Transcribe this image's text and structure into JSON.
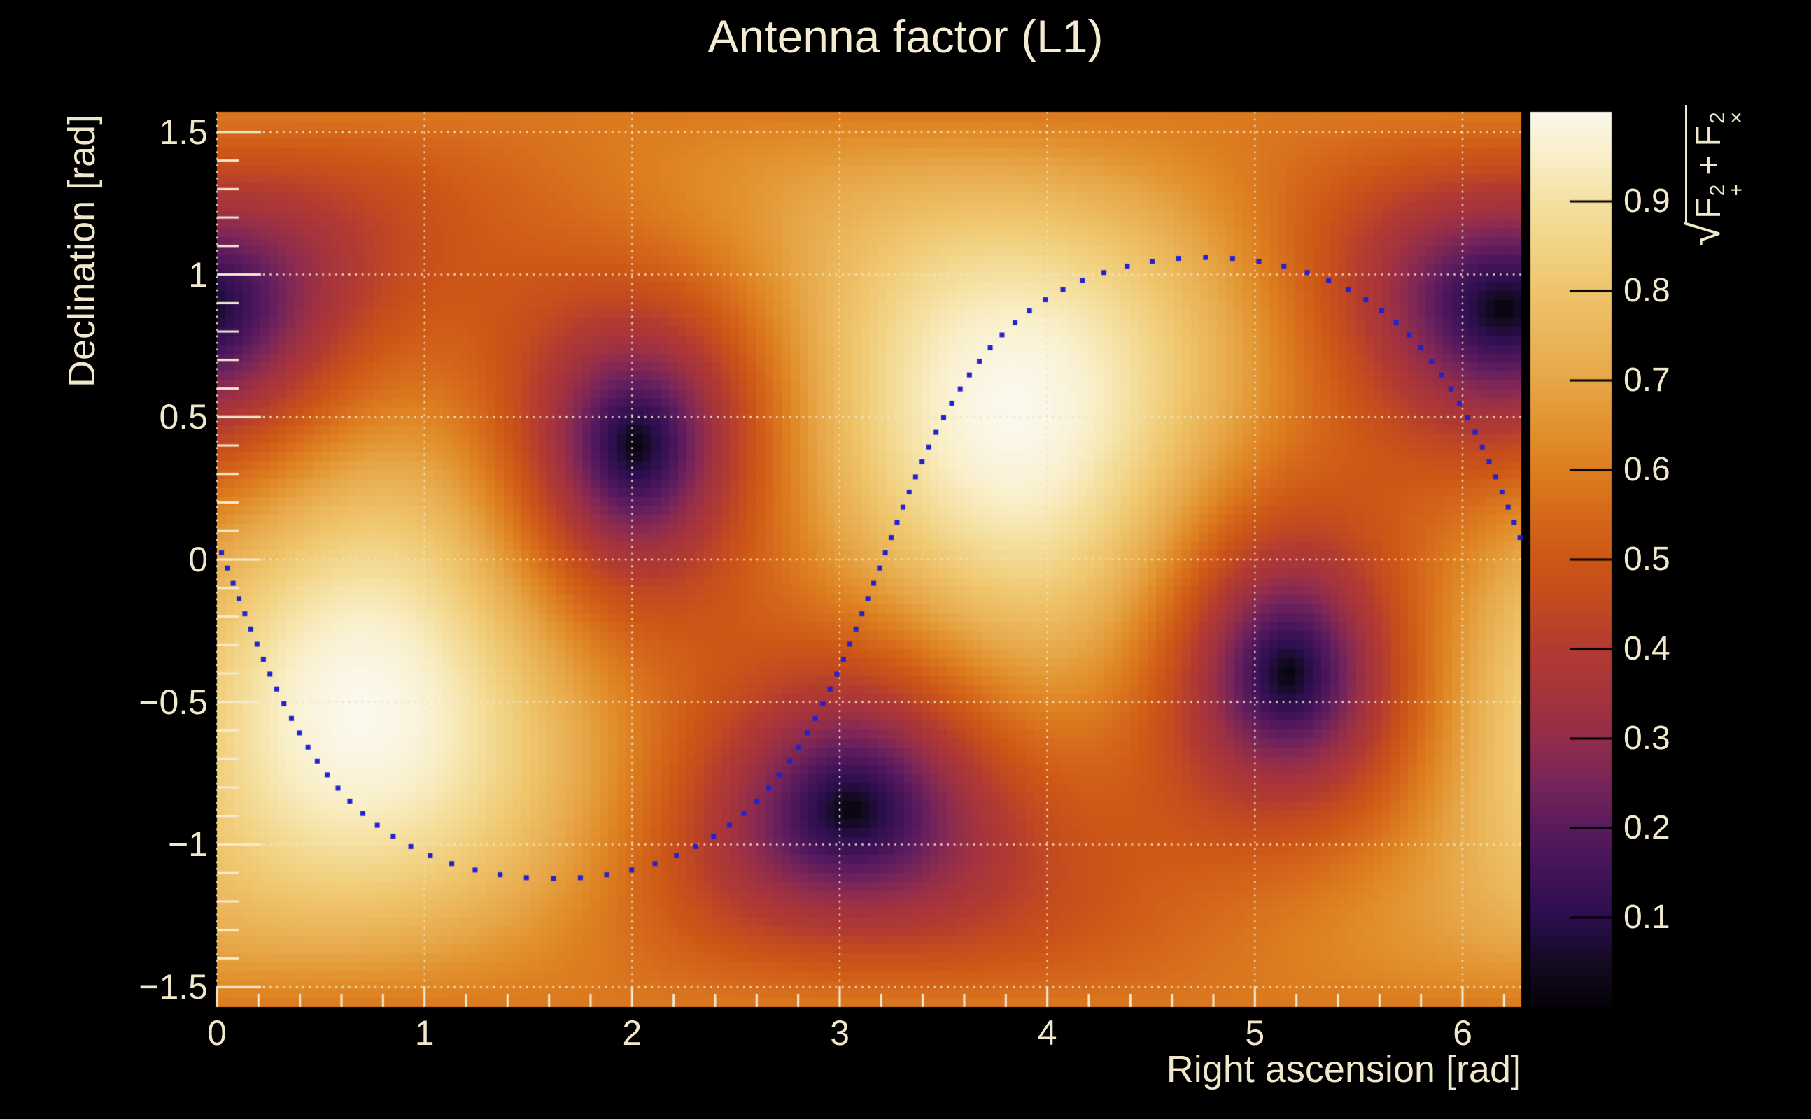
{
  "page": {
    "background": "#000000",
    "text_color": "#f1e8cc"
  },
  "chart_data": {
    "type": "heatmap",
    "title": "Antenna factor (L1)",
    "x_axis": {
      "title": "Right ascension [rad]",
      "range": [
        0,
        6.2832
      ],
      "minor_tick_step": 0.2,
      "ticks": [
        {
          "value": 0,
          "label": "0"
        },
        {
          "value": 1,
          "label": "1"
        },
        {
          "value": 2,
          "label": "2"
        },
        {
          "value": 3,
          "label": "3"
        },
        {
          "value": 4,
          "label": "4"
        },
        {
          "value": 5,
          "label": "5"
        },
        {
          "value": 6,
          "label": "6"
        }
      ]
    },
    "y_axis": {
      "title": "Declination [rad]",
      "range": [
        -1.5708,
        1.5708
      ],
      "minor_tick_step": 0.1,
      "ticks": [
        {
          "value": 1.5,
          "label": "1.5"
        },
        {
          "value": 1,
          "label": "1"
        },
        {
          "value": 0.5,
          "label": "0.5"
        },
        {
          "value": 0,
          "label": "0"
        },
        {
          "value": -0.5,
          "label": "−0.5"
        },
        {
          "value": -1,
          "label": "−1"
        },
        {
          "value": -1.5,
          "label": "−1.5"
        }
      ]
    },
    "colorbar": {
      "range": [
        0,
        1
      ],
      "ticks": [
        {
          "value": 0.9,
          "label": "0.9"
        },
        {
          "value": 0.8,
          "label": "0.8"
        },
        {
          "value": 0.7,
          "label": "0.7"
        },
        {
          "value": 0.6,
          "label": "0.6"
        },
        {
          "value": 0.5,
          "label": "0.5"
        },
        {
          "value": 0.4,
          "label": "0.4"
        },
        {
          "value": 0.3,
          "label": "0.3"
        },
        {
          "value": 0.2,
          "label": "0.2"
        },
        {
          "value": 0.1,
          "label": "0.1"
        }
      ],
      "label": {
        "radical": "√",
        "operator": "+",
        "terms": [
          {
            "base": "F",
            "sup": "2",
            "sub": "+"
          },
          {
            "base": "F",
            "sup": "2",
            "sub": "×"
          }
        ],
        "plain_text": "sqrt(F+^2 + Fx^2)"
      }
    },
    "grid": {
      "show": true,
      "style": "dotted",
      "color": "rgba(238,229,198,0.95)"
    },
    "bins": {
      "nx": 150,
      "ny": 100
    },
    "value_model": {
      "description": "Interferometer antenna pattern sqrt(F+^2+Fx^2) = sqrt(0.25*(1+c^2)^2*cos^2(2phi) + c^2*sin^2(2phi)), c=cos(angle to detector zenith), phi=azimuth about zenith measured from arm bisector",
      "zenith_ra": 3.84,
      "zenith_dec": 0.53,
      "null_ref_ra": 2.02,
      "null_ref_dec": 0.4,
      "maxima": [
        [
          3.84,
          0.53
        ],
        [
          0.7,
          -0.53
        ]
      ],
      "maxima_value": 1.0,
      "nulls": [
        [
          2.02,
          0.4
        ],
        [
          5.16,
          -0.41
        ],
        [
          3.06,
          -0.86
        ],
        [
          6.2,
          0.86
        ]
      ],
      "null_value": 0.0
    },
    "palette": [
      [
        0.0,
        "#050309"
      ],
      [
        0.05,
        "#150a23"
      ],
      [
        0.1,
        "#2b0f4e"
      ],
      [
        0.15,
        "#421357"
      ],
      [
        0.2,
        "#5a1b5e"
      ],
      [
        0.25,
        "#772559"
      ],
      [
        0.3,
        "#932d4b"
      ],
      [
        0.35,
        "#a6343c"
      ],
      [
        0.4,
        "#b23b31"
      ],
      [
        0.45,
        "#c24a21"
      ],
      [
        0.5,
        "#cd5716"
      ],
      [
        0.55,
        "#d5691b"
      ],
      [
        0.6,
        "#dd7e20"
      ],
      [
        0.65,
        "#e29330"
      ],
      [
        0.7,
        "#e7a748"
      ],
      [
        0.75,
        "#ebb65a"
      ],
      [
        0.8,
        "#efc56c"
      ],
      [
        0.85,
        "#f2d385"
      ],
      [
        0.9,
        "#f5e1a2"
      ],
      [
        0.95,
        "#f9efc9"
      ],
      [
        1.0,
        "#fbf8ec"
      ]
    ],
    "overlay_curve": {
      "description": "great-circle sky track drawn as dotted marker chain",
      "inclination_rad": 1.09,
      "node_ra_rad": 0.05,
      "dec_offset_rad": -0.03,
      "n_points": 104,
      "marker": "square",
      "marker_size_px": 7,
      "color": "#2121d1"
    },
    "tick_color": "#f4ead0",
    "colorbar_tick_color": "#000000"
  }
}
